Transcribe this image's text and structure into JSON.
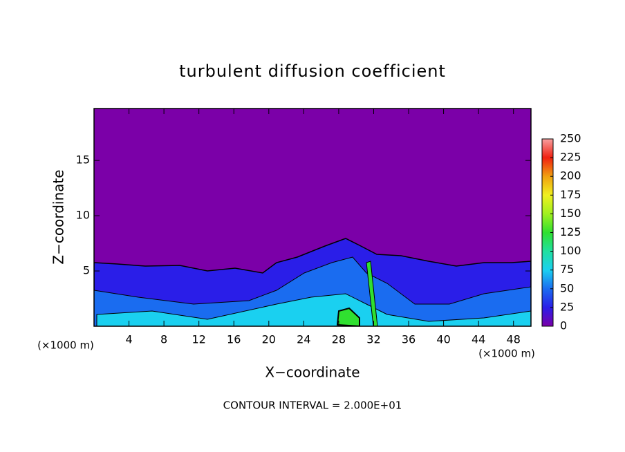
{
  "chart_data": {
    "type": "contour",
    "title": "turbulent diffusion coefficient",
    "xlabel": "X−coordinate",
    "ylabel": "Z−coordinate",
    "x_unit_label": "(×1000 m)",
    "y_unit_label": "(×1000 m)",
    "annotation": "CONTOUR INTERVAL = 2.000E+01",
    "xlim": [
      0,
      50
    ],
    "xticks": [
      4,
      8,
      12,
      16,
      20,
      24,
      28,
      32,
      36,
      40,
      44,
      48
    ],
    "ylim": [
      0,
      19.7
    ],
    "yticks": [
      5,
      10,
      15
    ],
    "colorbar": {
      "lim": [
        0,
        250
      ],
      "ticks": [
        0,
        25,
        50,
        75,
        100,
        125,
        150,
        175,
        200,
        225,
        250
      ],
      "colors": [
        "#7b00a8",
        "#2a1ee8",
        "#1a6cf0",
        "#1ad0f0",
        "#20e0a0",
        "#30e030",
        "#a0f020",
        "#f0f020",
        "#f0a010",
        "#f02010",
        "#f8a0a0"
      ]
    }
  }
}
